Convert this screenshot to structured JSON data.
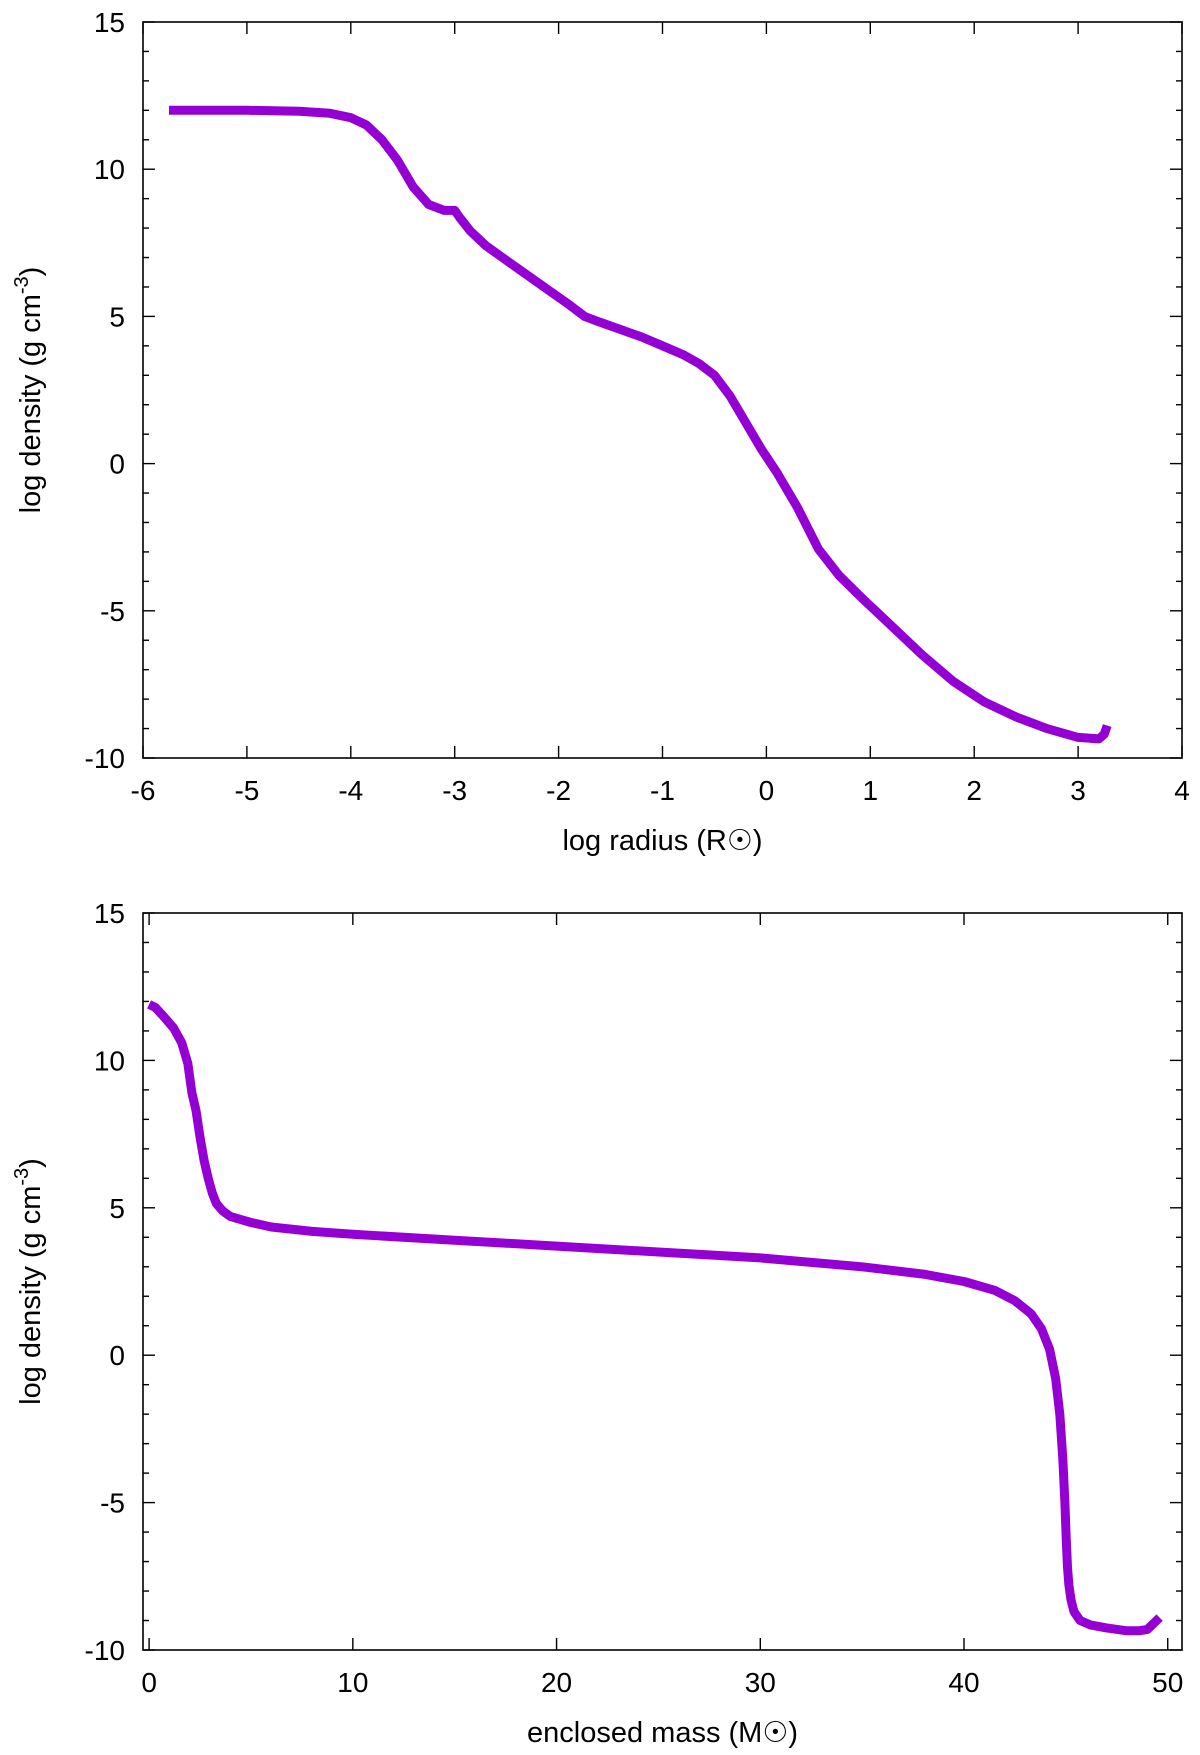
{
  "chart_data": [
    {
      "type": "line",
      "title": "",
      "xlabel": "log radius (R☉)",
      "ylabel": "log density (g cm-3)",
      "ylabel_base": "log density (g cm",
      "ylabel_sup": "-3",
      "ylabel_end": ")",
      "xlim": [
        -6,
        4
      ],
      "ylim": [
        -10,
        15
      ],
      "xticks": [
        -6,
        -5,
        -4,
        -3,
        -2,
        -1,
        0,
        1,
        2,
        3,
        4
      ],
      "yticks": [
        -10,
        -5,
        0,
        5,
        10,
        15
      ],
      "xtick_labels": [
        "-6",
        "-5",
        "-4",
        "-3",
        "-2",
        "-1",
        "0",
        "1",
        "2",
        "3",
        "4"
      ],
      "ytick_labels": [
        "-10",
        "-5",
        "0",
        "5",
        "10",
        "15"
      ],
      "grid": false,
      "series": [
        {
          "color": "#9400d3",
          "x": [
            -5.75,
            -5.0,
            -4.5,
            -4.2,
            -4.0,
            -3.85,
            -3.7,
            -3.55,
            -3.4,
            -3.25,
            -3.1,
            -3.0,
            -2.95,
            -2.85,
            -2.7,
            -2.5,
            -2.3,
            -2.1,
            -1.9,
            -1.75,
            -1.6,
            -1.4,
            -1.2,
            -1.0,
            -0.8,
            -0.65,
            -0.5,
            -0.35,
            -0.2,
            -0.05,
            0.1,
            0.3,
            0.5,
            0.7,
            0.9,
            1.2,
            1.5,
            1.8,
            2.1,
            2.4,
            2.7,
            3.0,
            3.2,
            3.25,
            3.27,
            3.28
          ],
          "y": [
            12.0,
            12.0,
            11.97,
            11.9,
            11.75,
            11.5,
            11.0,
            10.3,
            9.4,
            8.8,
            8.6,
            8.6,
            8.35,
            7.9,
            7.4,
            6.9,
            6.4,
            5.9,
            5.4,
            5.0,
            4.8,
            4.55,
            4.3,
            4.0,
            3.7,
            3.4,
            3.0,
            2.3,
            1.4,
            0.5,
            -0.3,
            -1.5,
            -2.9,
            -3.8,
            -4.5,
            -5.5,
            -6.5,
            -7.4,
            -8.1,
            -8.6,
            -9.0,
            -9.3,
            -9.35,
            -9.2,
            -9.0,
            -8.9
          ]
        }
      ]
    },
    {
      "type": "line",
      "title": "",
      "xlabel": "enclosed mass (M☉)",
      "ylabel": "log density (g cm-3)",
      "ylabel_base": "log density (g cm",
      "ylabel_sup": "-3",
      "ylabel_end": ")",
      "xlim": [
        -0.3,
        50.7
      ],
      "ylim": [
        -10,
        15
      ],
      "xticks": [
        0,
        10,
        20,
        30,
        40,
        50
      ],
      "yticks": [
        -10,
        -5,
        0,
        5,
        10,
        15
      ],
      "xtick_labels": [
        "0",
        "10",
        "20",
        "30",
        "40",
        "50"
      ],
      "ytick_labels": [
        "-10",
        "-5",
        "0",
        "5",
        "10",
        "15"
      ],
      "grid": false,
      "series": [
        {
          "color": "#9400d3",
          "x": [
            0.0,
            0.3,
            0.7,
            1.2,
            1.6,
            1.9,
            2.1,
            2.3,
            2.5,
            2.7,
            2.9,
            3.1,
            3.3,
            3.6,
            3.9,
            4.0,
            5.0,
            6.0,
            8.0,
            10.0,
            15.0,
            20.0,
            25.0,
            30.0,
            35.0,
            38.0,
            40.0,
            41.5,
            42.5,
            43.3,
            43.8,
            44.2,
            44.5,
            44.7,
            44.85,
            44.95,
            45.02,
            45.08,
            45.15,
            45.25,
            45.4,
            45.7,
            46.2,
            47.0,
            48.0,
            48.6,
            49.0,
            49.3,
            49.6
          ],
          "y": [
            11.9,
            11.8,
            11.5,
            11.1,
            10.6,
            9.9,
            8.9,
            8.3,
            7.4,
            6.6,
            6.0,
            5.5,
            5.15,
            4.9,
            4.75,
            4.7,
            4.5,
            4.35,
            4.2,
            4.1,
            3.9,
            3.7,
            3.5,
            3.3,
            3.0,
            2.75,
            2.5,
            2.2,
            1.85,
            1.4,
            0.9,
            0.2,
            -0.8,
            -2.0,
            -3.5,
            -5.0,
            -6.3,
            -7.2,
            -7.8,
            -8.3,
            -8.7,
            -9.0,
            -9.15,
            -9.25,
            -9.35,
            -9.35,
            -9.3,
            -9.1,
            -8.9
          ]
        }
      ]
    }
  ]
}
